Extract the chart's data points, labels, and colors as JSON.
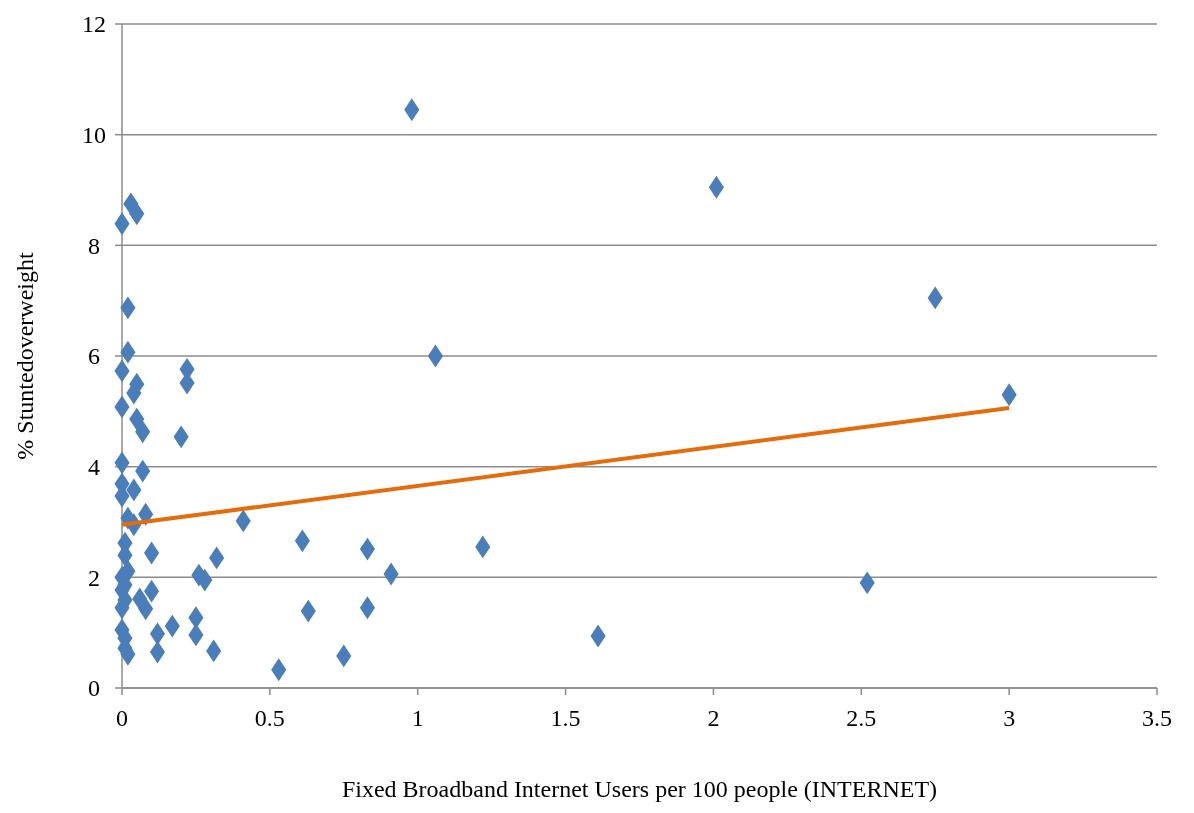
{
  "chart_data": {
    "type": "scatter",
    "xlabel": "Fixed Broadband Internet Users per 100 people (INTERNET)",
    "ylabel": "% Stuntedoverweight",
    "xlim": [
      0,
      3.5
    ],
    "xticks": [
      0,
      0.5,
      1,
      1.5,
      2,
      2.5,
      3,
      3.5
    ],
    "ylim": [
      0,
      12
    ],
    "yticks": [
      0,
      2,
      4,
      6,
      8,
      10,
      12
    ],
    "grid": "y",
    "series": [
      {
        "color": "#4a7ebb",
        "marker": "diamond",
        "x": [
          0,
          0.03,
          0.05,
          0.02,
          0.02,
          0,
          0.05,
          0.04,
          0,
          0.05,
          0.07,
          0,
          0.07,
          0,
          0.04,
          0,
          0.02,
          0.08,
          0.04,
          0.01,
          0.1,
          0.01,
          0.02,
          0,
          0.01,
          0,
          0.1,
          0.06,
          0.08,
          0,
          0.01,
          0,
          0.01,
          0.01,
          0.02,
          0.12,
          0.12,
          0.17,
          0.22,
          0.22,
          0.2,
          0.25,
          0.25,
          0.26,
          0.28,
          0.32,
          0.31,
          0.41,
          0.53,
          0.61,
          0.63,
          0.75,
          0.83,
          0.83,
          0.91,
          0.98,
          1.06,
          1.22,
          1.61,
          2.01,
          2.52,
          2.75,
          3.0
        ],
        "values": [
          8.39,
          8.75,
          8.57,
          6.87,
          6.07,
          5.73,
          5.49,
          5.33,
          5.08,
          4.86,
          4.63,
          4.07,
          3.92,
          3.69,
          3.58,
          3.47,
          3.07,
          3.14,
          2.95,
          2.62,
          2.44,
          2.4,
          2.11,
          2.0,
          1.86,
          1.77,
          1.75,
          1.61,
          1.43,
          1.45,
          1.59,
          1.05,
          0.9,
          0.72,
          0.61,
          0.98,
          0.65,
          1.12,
          5.76,
          5.51,
          4.54,
          1.27,
          0.96,
          2.04,
          1.95,
          2.35,
          0.67,
          3.02,
          0.33,
          2.66,
          1.39,
          0.58,
          2.51,
          1.45,
          2.06,
          10.45,
          6.0,
          2.55,
          0.94,
          9.05,
          1.9,
          7.05,
          5.3
        ]
      },
      {
        "type": "line",
        "color": "#e46c0a",
        "marker": "none",
        "x": [
          0,
          3
        ],
        "values": [
          2.95,
          5.06
        ]
      }
    ]
  }
}
